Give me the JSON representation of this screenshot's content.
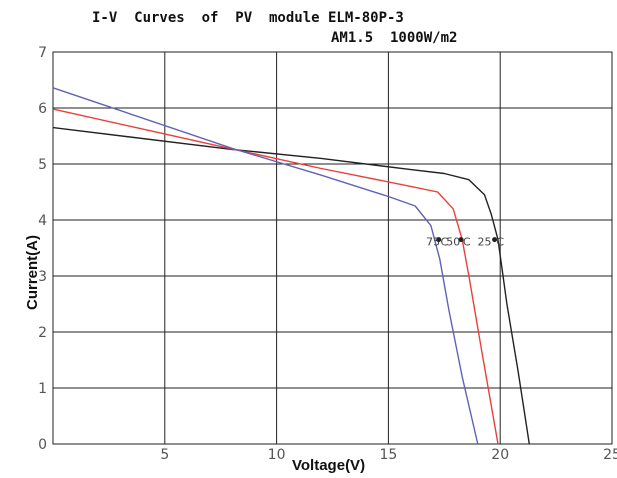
{
  "chart_data": {
    "type": "line",
    "title_line1": "I-V  Curves  of  PV  module ELM-80P-3",
    "title_line2": "AM1.5  1000W/m2",
    "xlabel": "Voltage(V)",
    "ylabel": "Current(A)",
    "xlim": [
      0,
      25
    ],
    "ylim": [
      0,
      7
    ],
    "x_ticks": [
      5,
      10,
      15,
      20,
      25
    ],
    "x_tick_labels": [
      "5",
      "10",
      "15",
      "20",
      "25"
    ],
    "y_ticks": [
      0,
      1,
      2,
      3,
      4,
      5,
      6,
      7
    ],
    "y_tick_labels": [
      "0",
      "1",
      "2",
      "3",
      "4",
      "5",
      "6",
      "7"
    ],
    "grid": true,
    "legend": "inline labels on curves",
    "series": [
      {
        "name": "25°C",
        "color": "#222222",
        "points": [
          [
            0,
            5.65
          ],
          [
            8,
            5.26
          ],
          [
            12,
            5.1
          ],
          [
            16,
            4.9
          ],
          [
            17.5,
            4.83
          ],
          [
            18.6,
            4.72
          ],
          [
            19.3,
            4.45
          ],
          [
            19.6,
            4.1
          ],
          [
            19.9,
            3.65
          ],
          [
            20.3,
            2.5
          ],
          [
            20.8,
            1.3
          ],
          [
            21.3,
            0
          ]
        ]
      },
      {
        "name": "50°C",
        "color": "#e8403a",
        "points": [
          [
            0,
            5.98
          ],
          [
            8,
            5.27
          ],
          [
            12,
            4.92
          ],
          [
            16,
            4.6
          ],
          [
            17.2,
            4.5
          ],
          [
            17.9,
            4.2
          ],
          [
            18.3,
            3.65
          ],
          [
            18.6,
            3.0
          ],
          [
            19.2,
            1.6
          ],
          [
            19.9,
            0
          ]
        ]
      },
      {
        "name": "75°C",
        "color": "#6062b8",
        "points": [
          [
            0,
            6.36
          ],
          [
            8,
            5.28
          ],
          [
            12,
            4.8
          ],
          [
            15,
            4.42
          ],
          [
            16.2,
            4.25
          ],
          [
            16.9,
            3.9
          ],
          [
            17.3,
            3.3
          ],
          [
            17.7,
            2.4
          ],
          [
            18.3,
            1.2
          ],
          [
            19.0,
            0
          ]
        ]
      }
    ],
    "annotations": [
      {
        "text": "75",
        "x": 17.0,
        "y": 3.62
      },
      {
        "text": "C",
        "x": 17.5,
        "y": 3.62
      },
      {
        "text": "50",
        "x": 17.9,
        "y": 3.62
      },
      {
        "text": "C",
        "x": 18.5,
        "y": 3.62
      },
      {
        "text": "25",
        "x": 19.3,
        "y": 3.62
      },
      {
        "text": "C",
        "x": 20.0,
        "y": 3.62
      }
    ],
    "markers": [
      {
        "x": 17.25,
        "y": 3.65
      },
      {
        "x": 18.25,
        "y": 3.65
      },
      {
        "x": 19.75,
        "y": 3.65
      }
    ]
  }
}
